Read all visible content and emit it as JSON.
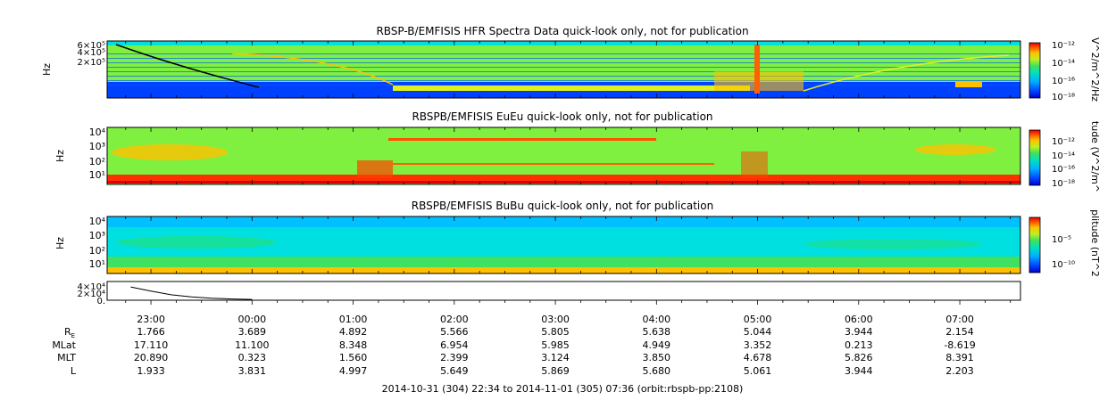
{
  "colors": {
    "background": "#ffffff",
    "foreground": "#000000",
    "colormap": [
      "#0000c8",
      "#0040ff",
      "#00a0ff",
      "#00e0e0",
      "#20e080",
      "#80f040",
      "#e0f020",
      "#ffc000",
      "#ff6000",
      "#e00000"
    ]
  },
  "chart_data": [
    {
      "type": "heatmap",
      "title": "RBSP-B/EMFISIS  HFR Spectra Data quick-look only, not for publication",
      "ylabel": "Hz",
      "y_ticks": [
        "6×10⁵",
        "4×10⁵",
        "2×10⁵"
      ],
      "y_scale": "log",
      "colorbar_label": "V^2/m^2/Hz",
      "colorbar_ticks": [
        "10⁻¹²",
        "10⁻¹⁴",
        "10⁻¹⁶",
        "10⁻¹⁸"
      ],
      "colorbar_range": [
        -18.5,
        -11.5
      ],
      "background_level": 0.6
    },
    {
      "type": "heatmap",
      "title": "RBSPB/EMFISIS  EuEu quick-look only, not for publication",
      "ylabel": "Hz",
      "y_ticks": [
        "10⁴",
        "10³",
        "10²",
        "10¹"
      ],
      "y_scale": "log",
      "colorbar_label": "tude (V^2/m^",
      "colorbar_ticks": [
        "10⁻¹²",
        "10⁻¹⁴",
        "10⁻¹⁶",
        "10⁻¹⁸"
      ],
      "colorbar_range": [
        -18.5,
        -11.5
      ],
      "background_level": 0.55
    },
    {
      "type": "heatmap",
      "title": "RBSPB/EMFISIS  BuBu quick-look only, not for publication",
      "ylabel": "Hz",
      "y_ticks": [
        "10⁴",
        "10³",
        "10²",
        "10¹"
      ],
      "y_scale": "log",
      "colorbar_label": "plitude (nT^2",
      "colorbar_ticks": [
        "10⁻⁵",
        "10⁻¹⁰"
      ],
      "colorbar_range": [
        -12,
        -2
      ],
      "background_level": 0.35
    },
    {
      "type": "line",
      "y_ticks": [
        "4×10⁴",
        "2×10⁴",
        "0."
      ],
      "ylim": [
        0,
        45000
      ],
      "x_hours": [
        -1.2,
        -1.0,
        -0.8,
        -0.6,
        -0.4,
        -0.2,
        0.0
      ],
      "values": [
        32000,
        22000,
        13000,
        8000,
        5000,
        3000,
        2000
      ]
    }
  ],
  "time_axis": {
    "range_hours": [
      -1.4333,
      7.6
    ],
    "ticks": [
      {
        "hour": -1,
        "label": "23:00"
      },
      {
        "hour": 0,
        "label": "00:00"
      },
      {
        "hour": 1,
        "label": "01:00"
      },
      {
        "hour": 2,
        "label": "02:00"
      },
      {
        "hour": 3,
        "label": "03:00"
      },
      {
        "hour": 4,
        "label": "04:00"
      },
      {
        "hour": 5,
        "label": "05:00"
      },
      {
        "hour": 6,
        "label": "06:00"
      },
      {
        "hour": 7,
        "label": "07:00"
      }
    ]
  },
  "ephemeris": {
    "rows": [
      {
        "label": "R",
        "sub": "E",
        "values": [
          "1.766",
          "3.689",
          "4.892",
          "5.566",
          "5.805",
          "5.638",
          "5.044",
          "3.944",
          "2.154"
        ]
      },
      {
        "label": "MLat",
        "values": [
          "17.110",
          "11.100",
          "8.348",
          "6.954",
          "5.985",
          "4.949",
          "3.352",
          "0.213",
          "-8.619"
        ]
      },
      {
        "label": "MLT",
        "values": [
          "20.890",
          "0.323",
          "1.560",
          "2.399",
          "3.124",
          "3.850",
          "4.678",
          "5.826",
          "8.391"
        ]
      },
      {
        "label": "L",
        "values": [
          "1.933",
          "3.831",
          "4.997",
          "5.649",
          "5.869",
          "5.680",
          "5.061",
          "3.944",
          "2.203"
        ]
      }
    ]
  },
  "footer": "2014-10-31 (304) 22:34 to 2014-11-01 (305) 07:36 (orbit:rbspb-pp:2108)"
}
